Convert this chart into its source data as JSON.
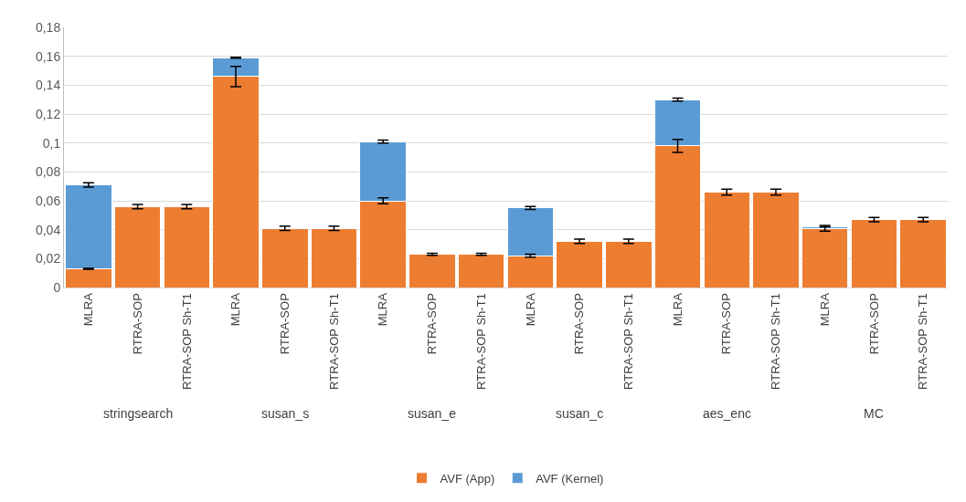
{
  "chart_data": {
    "type": "bar",
    "stacked": true,
    "categories": [
      "MLRA",
      "RTRA-SOP",
      "RTRA-SOP Sh-T1",
      "MLRA",
      "RTRA-SOP",
      "RTRA-SOP Sh-T1",
      "MLRA",
      "RTRA-SOP",
      "RTRA-SOP Sh-T1",
      "MLRA",
      "RTRA-SOP",
      "RTRA-SOP Sh-T1",
      "MLRA",
      "RTRA-SOP",
      "RTRA-SOP Sh-T1",
      "MLRA",
      "RTRA-SOP",
      "RTRA-SOP Sh-T1"
    ],
    "annotations": [
      "stringsearch",
      "susan_s",
      "susan_e",
      "susan_c",
      "aes_enc",
      "MC"
    ],
    "series": [
      {
        "name": "AVF (App)",
        "color": "#ed7d31",
        "values": [
          0.013,
          0.056,
          0.056,
          0.146,
          0.041,
          0.041,
          0.06,
          0.023,
          0.023,
          0.022,
          0.032,
          0.032,
          0.098,
          0.066,
          0.066,
          0.041,
          0.047,
          0.047
        ],
        "errors": [
          0.0003,
          0.0015,
          0.0015,
          0.007,
          0.0015,
          0.0015,
          0.002,
          0.0007,
          0.0007,
          0.001,
          0.0015,
          0.0015,
          0.0045,
          0.002,
          0.002,
          0.002,
          0.0015,
          0.0015
        ]
      },
      {
        "name": "AVF (Kernel)",
        "color": "#5b9bd5",
        "values": [
          0.058,
          null,
          null,
          0.013,
          null,
          null,
          0.041,
          null,
          null,
          0.033,
          null,
          null,
          0.032,
          null,
          null,
          0.001,
          null,
          null
        ],
        "errors": [
          0.0015,
          null,
          null,
          0.0003,
          null,
          null,
          0.001,
          null,
          null,
          0.001,
          null,
          null,
          0.001,
          null,
          null,
          null,
          null,
          null
        ]
      }
    ],
    "ylim": [
      0,
      0.18
    ],
    "yticks": [
      {
        "value": 0,
        "label": "0"
      },
      {
        "value": 0.02,
        "label": "0,02"
      },
      {
        "value": 0.04,
        "label": "0,04"
      },
      {
        "value": 0.06,
        "label": "0,06"
      },
      {
        "value": 0.08,
        "label": "0,08"
      },
      {
        "value": 0.1,
        "label": "0,1"
      },
      {
        "value": 0.12,
        "label": "0,12"
      },
      {
        "value": 0.14,
        "label": "0,14"
      },
      {
        "value": 0.16,
        "label": "0,16"
      },
      {
        "value": 0.18,
        "label": "0,18"
      }
    ],
    "grid": "y",
    "legend": "bottom"
  }
}
